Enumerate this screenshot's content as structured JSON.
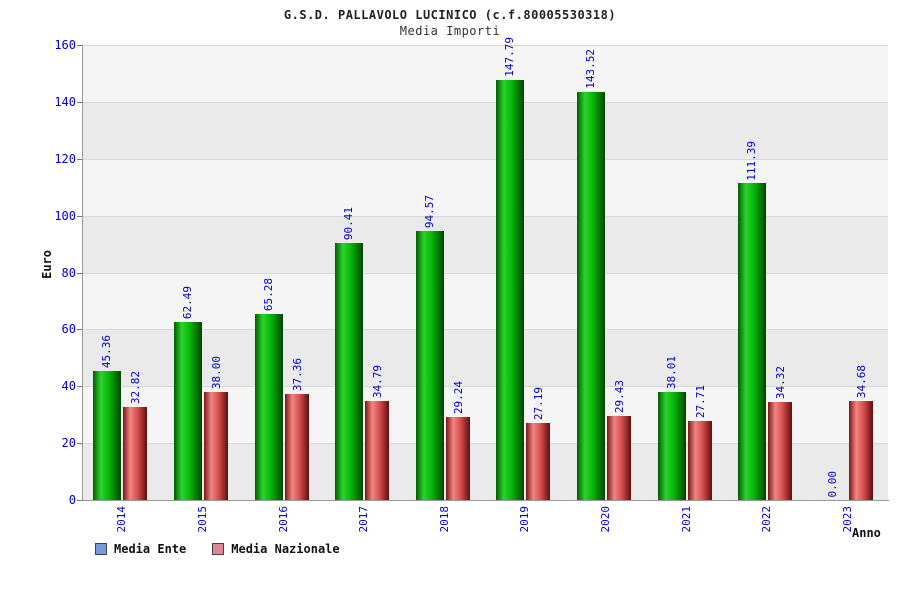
{
  "header": {
    "title": "G.S.D. PALLAVOLO LUCINICO (c.f.80005530318)",
    "subtitle": "Media Importi"
  },
  "axes": {
    "y_title": "Euro",
    "x_title": "Anno"
  },
  "legend": {
    "items": [
      {
        "label": "Media Ente",
        "color": "#7799dd"
      },
      {
        "label": "Media Nazionale",
        "color": "#dd8899"
      }
    ]
  },
  "chart_data": {
    "type": "bar",
    "title": "G.S.D. PALLAVOLO LUCINICO (c.f.80005530318)",
    "subtitle": "Media Importi",
    "categories": [
      "2014",
      "2015",
      "2016",
      "2017",
      "2018",
      "2019",
      "2020",
      "2021",
      "2022",
      "2023"
    ],
    "series": [
      {
        "name": "Media Ente",
        "color": "#00bb00",
        "values": [
          45.36,
          62.49,
          65.28,
          90.41,
          94.57,
          147.79,
          143.52,
          38.01,
          111.39,
          0.0
        ]
      },
      {
        "name": "Media Nazionale",
        "color": "#dd4444",
        "values": [
          32.82,
          38.0,
          37.36,
          34.79,
          29.24,
          27.19,
          29.43,
          27.71,
          34.32,
          34.68
        ]
      }
    ],
    "xlabel": "Anno",
    "ylabel": "Euro",
    "ylim": [
      0,
      160
    ],
    "ytick_step": 20,
    "yticks": [
      0,
      20,
      40,
      60,
      80,
      100,
      120,
      140,
      160
    ],
    "grid": true,
    "legend_position": "bottom-left",
    "value_label_color": "#0000cc",
    "tick_label_color": "#0000cc"
  }
}
